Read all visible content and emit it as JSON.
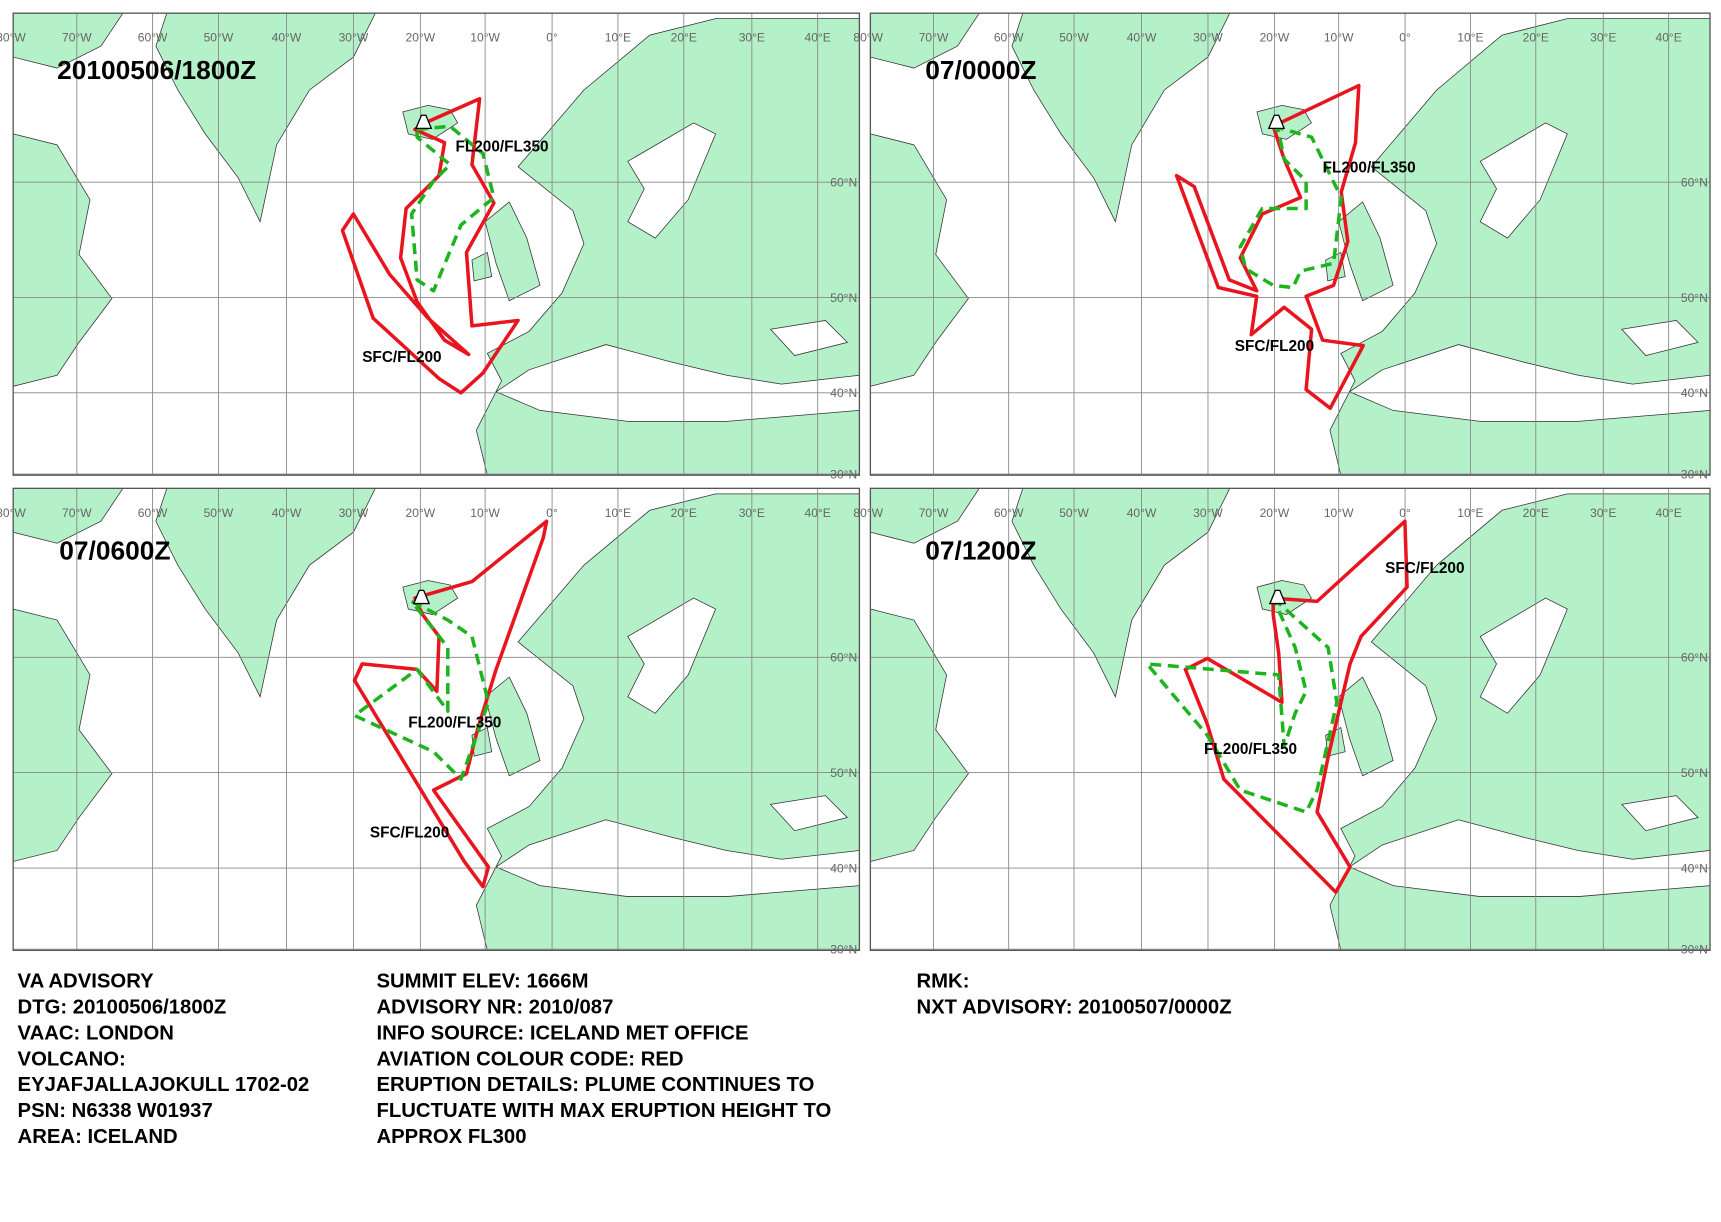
{
  "panels": [
    {
      "time": "20100506/1800Z",
      "labels": [
        "FL200/FL350",
        "SFC/FL200"
      ]
    },
    {
      "time": "07/0000Z",
      "labels": [
        "FL200/FL350",
        "SFC/FL200"
      ]
    },
    {
      "time": "07/0600Z",
      "labels": [
        "FL200/FL350",
        "SFC/FL200"
      ]
    },
    {
      "time": "07/1200Z",
      "labels": [
        "SFC/FL200",
        "FL200/FL350"
      ]
    }
  ],
  "graticule": {
    "longitudes": [
      "80°W",
      "70°W",
      "60°W",
      "50°W",
      "40°W",
      "30°W",
      "20°W",
      "10°W",
      "0°",
      "10°E",
      "20°E",
      "30°E",
      "40°E"
    ],
    "latitudes": [
      "60°N",
      "50°N",
      "40°N",
      "30°N"
    ]
  },
  "advisory": {
    "column_1": [
      "VA ADVISORY",
      "DTG:  20100506/1800Z",
      "VAAC:  LONDON",
      "VOLCANO:",
      "EYJAFJALLAJOKULL 1702-02",
      "PSN:  N6338 W01937",
      "AREA:  ICELAND"
    ],
    "column_2": [
      "SUMMIT ELEV:  1666M",
      "ADVISORY NR:  2010/087",
      "INFO SOURCE:  ICELAND MET OFFICE",
      "AVIATION COLOUR CODE:  RED",
      "ERUPTION DETAILS:  PLUME CONTINUES TO",
      "FLUCTUATE WITH MAX ERUPTION HEIGHT TO",
      "APPROX FL300"
    ],
    "column_3": [
      "RMK:",
      "NXT ADVISORY:  20100507/0000Z"
    ]
  }
}
